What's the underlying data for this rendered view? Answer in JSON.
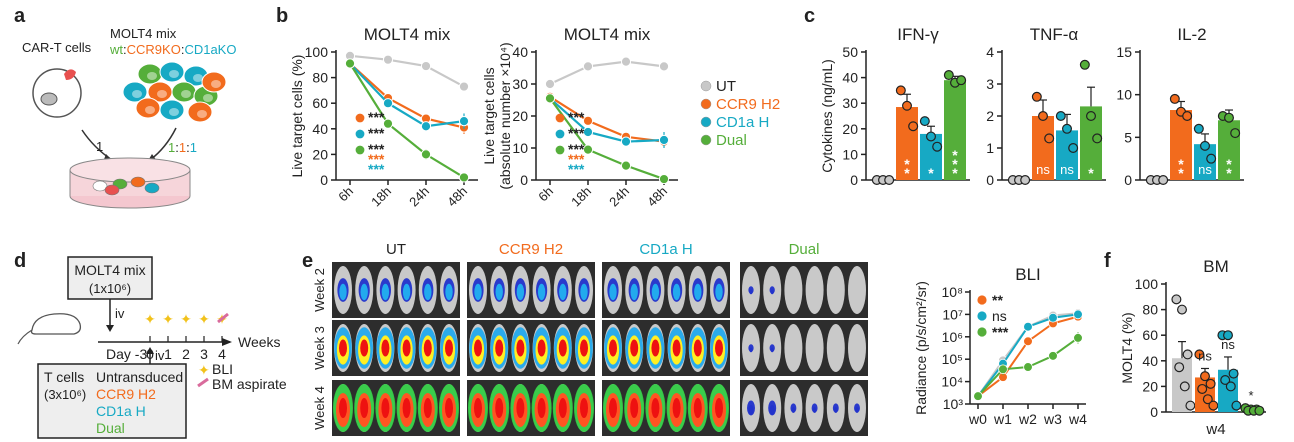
{
  "colors": {
    "UT": "#c8c8c8",
    "CCR9": "#f26b1d",
    "CD1a": "#17a9c4",
    "Dual": "#55ae3a",
    "text": "#222222"
  },
  "panels": {
    "a": "a",
    "b": "b",
    "c": "c",
    "d": "d",
    "e": "e",
    "f": "f"
  },
  "panel_a": {
    "cart_label": "CAR-T cells",
    "molt4_label": "MOLT4 mix",
    "mix_parts": [
      {
        "t": "wt",
        "c": "Dual"
      },
      {
        "t": ":",
        "c": "text"
      },
      {
        "t": "CCR9KO",
        "c": "CCR9"
      },
      {
        "t": ":",
        "c": "text"
      },
      {
        "t": "CD1aKO",
        "c": "CD1a"
      }
    ],
    "ratio_left": "1",
    "ratio_parts": [
      {
        "t": "1",
        "c": "Dual"
      },
      {
        "t": ":",
        "c": "text"
      },
      {
        "t": "1",
        "c": "CCR9"
      },
      {
        "t": ":",
        "c": "text"
      },
      {
        "t": "1",
        "c": "CD1a"
      }
    ]
  },
  "legend_b": [
    {
      "key": "UT",
      "label": "UT"
    },
    {
      "key": "CCR9",
      "label": "CCR9 H2"
    },
    {
      "key": "CD1a",
      "label": "CD1a H"
    },
    {
      "key": "Dual",
      "label": "Dual"
    }
  ],
  "panel_d": {
    "molt4_box": [
      "MOLT4 mix",
      "(1x10⁶)"
    ],
    "iv_top": "iv",
    "iv_bottom": "iv",
    "day_label": "Day -3",
    "week_ticks": [
      "0",
      "1",
      "2",
      "3",
      "4"
    ],
    "weeks_label": "Weeks",
    "tcell_label": [
      "T cells",
      "(3x10⁶)"
    ],
    "tcell_groups": [
      {
        "t": "Untransduced",
        "c": "text"
      },
      {
        "t": "CCR9 H2",
        "c": "CCR9"
      },
      {
        "t": "CD1a H",
        "c": "CD1a"
      },
      {
        "t": "Dual",
        "c": "Dual"
      }
    ],
    "legend_bli": "BLI",
    "legend_bm": "BM aspirate"
  },
  "panel_e": {
    "groups": [
      {
        "t": "UT",
        "c": "text"
      },
      {
        "t": "CCR9 H2",
        "c": "CCR9"
      },
      {
        "t": "CD1a H",
        "c": "CD1a"
      },
      {
        "t": "Dual",
        "c": "Dual"
      }
    ],
    "weeks": [
      "Week 2",
      "Week 3",
      "Week 4"
    ],
    "mice_per_group": 6
  },
  "chart_data": [
    {
      "id": "b_left",
      "type": "line",
      "title": "MOLT4 mix",
      "xlabel": "",
      "ylabel": "Live target cells (%)",
      "categories": [
        "6h",
        "18h",
        "24h",
        "48h"
      ],
      "ylim": [
        0,
        100
      ],
      "yticks": [
        0,
        20,
        40,
        60,
        80,
        100
      ],
      "series": [
        {
          "name": "UT",
          "key": "UT",
          "values": [
            97,
            94,
            89,
            73
          ],
          "err": [
            1,
            1,
            2,
            2
          ]
        },
        {
          "name": "CCR9 H2",
          "key": "CCR9",
          "values": [
            91,
            64,
            48,
            41
          ],
          "err": [
            2,
            2,
            3,
            5
          ]
        },
        {
          "name": "CD1a H",
          "key": "CD1a",
          "values": [
            91,
            60,
            42,
            46
          ],
          "err": [
            2,
            2,
            3,
            6
          ]
        },
        {
          "name": "Dual",
          "key": "Dual",
          "values": [
            91,
            44,
            20,
            2
          ],
          "err": [
            2,
            2,
            4,
            1
          ]
        }
      ],
      "annotations": [
        {
          "key": "CCR9",
          "stars": [
            {
              "t": "***",
              "c": "text"
            }
          ]
        },
        {
          "key": "CD1a",
          "stars": [
            {
              "t": "***",
              "c": "text"
            }
          ]
        },
        {
          "key": "Dual",
          "stars": [
            {
              "t": "***",
              "c": "text"
            },
            {
              "t": "***",
              "c": "CCR9"
            },
            {
              "t": "***",
              "c": "CD1a"
            }
          ]
        }
      ]
    },
    {
      "id": "b_right",
      "type": "line",
      "title": "MOLT4 mix",
      "xlabel": "",
      "ylabel": [
        "Live target cells",
        "(absolute number ×10⁴)"
      ],
      "categories": [
        "6h",
        "18h",
        "24h",
        "48h"
      ],
      "ylim": [
        0,
        40
      ],
      "yticks": [
        0,
        10,
        20,
        30,
        40
      ],
      "series": [
        {
          "name": "UT",
          "key": "UT",
          "values": [
            30,
            35.5,
            37,
            35.5
          ],
          "err": [
            0.5,
            0.5,
            0.5,
            0.5
          ]
        },
        {
          "name": "CCR9 H2",
          "key": "CCR9",
          "values": [
            26,
            18.5,
            13.5,
            12
          ],
          "err": [
            0.8,
            0.8,
            0.8,
            1.2
          ]
        },
        {
          "name": "CD1a H",
          "key": "CD1a",
          "values": [
            25.5,
            15,
            12,
            12.5
          ],
          "err": [
            0.8,
            0.8,
            0.8,
            2.5
          ]
        },
        {
          "name": "Dual",
          "key": "Dual",
          "values": [
            25.5,
            9.5,
            4.5,
            0.3
          ],
          "err": [
            0.8,
            0.6,
            0.6,
            0.2
          ]
        }
      ],
      "annotations": [
        {
          "key": "CCR9",
          "stars": [
            {
              "t": "***",
              "c": "text"
            }
          ]
        },
        {
          "key": "CD1a",
          "stars": [
            {
              "t": "***",
              "c": "text"
            }
          ]
        },
        {
          "key": "Dual",
          "stars": [
            {
              "t": "***",
              "c": "text"
            },
            {
              "t": "***",
              "c": "CCR9"
            },
            {
              "t": "***",
              "c": "CD1a"
            }
          ]
        }
      ]
    },
    {
      "id": "c_ifn",
      "type": "bar",
      "title": "IFN-γ",
      "ylabel": "Cytokines (ng/mL)",
      "ylim": [
        0,
        50
      ],
      "yticks": [
        0,
        10,
        20,
        30,
        40,
        50
      ],
      "bars": [
        {
          "key": "UT",
          "value": 0,
          "err": 0,
          "points": [
            0,
            0,
            0
          ],
          "label": ""
        },
        {
          "key": "CCR9",
          "value": 28.5,
          "err": 5,
          "points": [
            35,
            29,
            21
          ],
          "label": "**"
        },
        {
          "key": "CD1a",
          "value": 18,
          "err": 3,
          "points": [
            23,
            17,
            13
          ],
          "label": "*"
        },
        {
          "key": "Dual",
          "value": 39,
          "err": 1.5,
          "points": [
            41,
            38,
            39
          ],
          "label": "***"
        }
      ]
    },
    {
      "id": "c_tnf",
      "type": "bar",
      "title": "TNF-α",
      "ylabel": "",
      "ylim": [
        0,
        4
      ],
      "yticks": [
        0,
        1,
        2,
        3,
        4
      ],
      "bars": [
        {
          "key": "UT",
          "value": 0,
          "err": 0,
          "points": [
            0,
            0,
            0
          ],
          "label": ""
        },
        {
          "key": "CCR9",
          "value": 2,
          "err": 0.5,
          "points": [
            2.6,
            2,
            1.3
          ],
          "label": "ns"
        },
        {
          "key": "CD1a",
          "value": 1.55,
          "err": 0.5,
          "points": [
            2,
            1.6,
            1
          ],
          "label": "ns"
        },
        {
          "key": "Dual",
          "value": 2.3,
          "err": 0.6,
          "points": [
            3.6,
            2,
            1.3
          ],
          "label": "*"
        }
      ]
    },
    {
      "id": "c_il2",
      "type": "bar",
      "title": "IL-2",
      "ylabel": "",
      "ylim": [
        0,
        15
      ],
      "yticks": [
        0,
        5,
        10,
        15
      ],
      "bars": [
        {
          "key": "UT",
          "value": 0,
          "err": 0,
          "points": [
            0,
            0,
            0
          ],
          "label": ""
        },
        {
          "key": "CCR9",
          "value": 8.2,
          "err": 1,
          "points": [
            9.5,
            8,
            7.5
          ],
          "label": "**"
        },
        {
          "key": "CD1a",
          "value": 4.2,
          "err": 1.2,
          "points": [
            6,
            4,
            2.5
          ],
          "label": "ns"
        },
        {
          "key": "Dual",
          "value": 7,
          "err": 1.2,
          "points": [
            7.5,
            7.3,
            5.5
          ],
          "label": "**"
        }
      ]
    },
    {
      "id": "e_bli",
      "type": "line",
      "title": "BLI",
      "ylabel": "Radiance (p/s/cm²/sr)",
      "log_scale": true,
      "ylim_exp": [
        3,
        8
      ],
      "yticks": [
        "10³",
        "10⁴",
        "10⁵",
        "10⁶",
        "10⁷",
        "10⁸"
      ],
      "categories": [
        "w0",
        "w1",
        "w2",
        "w3",
        "w4"
      ],
      "series": [
        {
          "name": "UT",
          "key": "UT",
          "exp": [
            3.35,
            4.95,
            6.45,
            6.95,
            7.05
          ],
          "err": [
            0.05,
            0.1,
            0.1,
            0.1,
            0.1
          ]
        },
        {
          "name": "CCR9 H2",
          "key": "CCR9",
          "exp": [
            3.35,
            4.2,
            5.8,
            6.6,
            6.9
          ],
          "err": [
            0.05,
            0.1,
            0.1,
            0.1,
            0.1
          ]
        },
        {
          "name": "CD1a H",
          "key": "CD1a",
          "exp": [
            3.35,
            4.8,
            6.45,
            6.85,
            7.0
          ],
          "err": [
            0.05,
            0.1,
            0.1,
            0.1,
            0.1
          ]
        },
        {
          "name": "Dual",
          "key": "Dual",
          "exp": [
            3.35,
            4.55,
            4.65,
            5.15,
            5.95
          ],
          "err": [
            0.05,
            0.25,
            0.1,
            0.15,
            0.25
          ]
        }
      ],
      "legend": [
        {
          "key": "CCR9",
          "label": "**"
        },
        {
          "key": "CD1a",
          "label": "ns"
        },
        {
          "key": "Dual",
          "label": "***"
        }
      ]
    },
    {
      "id": "f_bm",
      "type": "bar",
      "title": "BM",
      "ylabel": "MOLT4 (%)",
      "xlabel": "w4",
      "ylim": [
        0,
        100
      ],
      "yticks": [
        0,
        20,
        40,
        60,
        80,
        100
      ],
      "bars": [
        {
          "key": "UT",
          "value": 42,
          "err": 13,
          "points": [
            88,
            80,
            45,
            35,
            20,
            5
          ],
          "label": ""
        },
        {
          "key": "CCR9",
          "value": 27,
          "err": 7,
          "points": [
            45,
            28,
            22,
            18,
            10,
            5
          ],
          "label": "ns"
        },
        {
          "key": "CD1a",
          "value": 33,
          "err": 10,
          "points": [
            60,
            60,
            30,
            25,
            20,
            5
          ],
          "label": "ns"
        },
        {
          "key": "Dual",
          "value": 2,
          "err": 1,
          "points": [
            3,
            2,
            2,
            1,
            1,
            1
          ],
          "label": "*"
        }
      ]
    }
  ]
}
